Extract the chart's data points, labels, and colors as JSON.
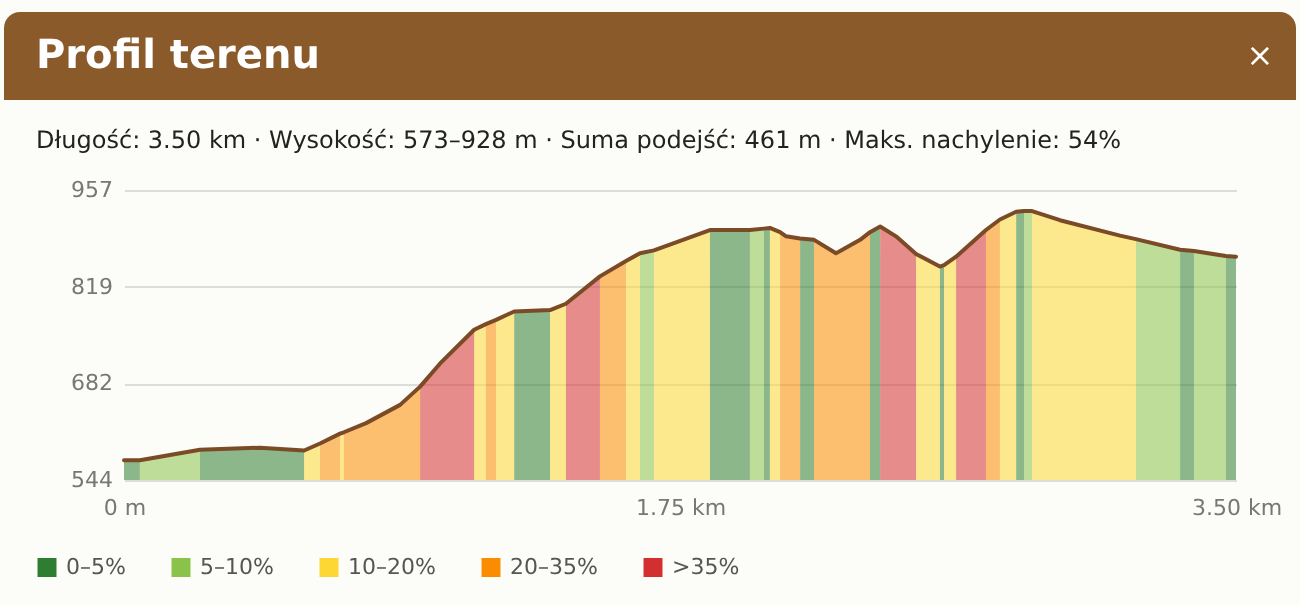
{
  "chart_data": {
    "type": "area",
    "title": "Profil terenu",
    "subtitle": "Długość: 3.50 km · Wysokość: 573–928 m · Suma podejść: 461 m · Maks. nachylenie: 54%",
    "annotations": [
      "×"
    ],
    "xlim": [
      0,
      3.5
    ],
    "xticks": [
      {
        "value": 0,
        "label": "0 m"
      },
      {
        "value": 1.75,
        "label": "1.75 km"
      },
      {
        "value": 3.5,
        "label": "3.50 km"
      }
    ],
    "ylim": [
      544,
      957
    ],
    "yticks": [
      544,
      682,
      819,
      957
    ],
    "grid": "y",
    "legend": "bottom left",
    "series": [
      {
        "name": "0–5%",
        "color": "#2e7d32",
        "x": [
          0,
          0.05,
          null,
          0.239,
          0.428,
          0.567,
          null,
          1.228,
          1.341,
          null,
          1.844,
          1.97,
          null,
          2.014,
          2.033,
          null,
          2.128,
          2.172,
          null,
          2.348,
          2.38,
          null,
          2.568,
          2.581,
          null,
          2.808,
          2.833,
          null,
          3.324,
          3.368,
          null,
          3.468,
          3.5
        ],
        "values": [
          572,
          572,
          null,
          587,
          590,
          586,
          null,
          784,
          786,
          null,
          900,
          900,
          null,
          902,
          903,
          null,
          888,
          886,
          null,
          897,
          905,
          null,
          848,
          850,
          null,
          926,
          927,
          null,
          872,
          870,
          null,
          863,
          862
        ]
      },
      {
        "name": "5–10%",
        "color": "#8bc34a",
        "x": [
          0.05,
          0.239,
          null,
          1.624,
          1.668,
          null,
          1.97,
          2.014,
          null,
          2.833,
          2.858,
          null,
          3.185,
          3.324,
          null,
          3.368,
          3.468
        ],
        "values": [
          572,
          587,
          null,
          867,
          871,
          null,
          900,
          902,
          null,
          927,
          927,
          null,
          887,
          872,
          null,
          870,
          863
        ]
      },
      {
        "name": "10–20%",
        "color": "#fdd835",
        "x": [
          0.567,
          0.617,
          null,
          0.68,
          0.692,
          null,
          1.102,
          1.139,
          null,
          1.171,
          1.228,
          null,
          1.341,
          1.391,
          null,
          1.58,
          1.624,
          null,
          1.668,
          1.844,
          null,
          2.033,
          2.065,
          null,
          2.493,
          2.568,
          null,
          2.581,
          2.619,
          null,
          2.757,
          2.808,
          null,
          2.858,
          2.946,
          3.135,
          3.185
        ],
        "values": [
          586,
          596,
          null,
          610,
          612,
          null,
          758,
          766,
          null,
          772,
          784,
          null,
          786,
          795,
          null,
          856,
          867,
          null,
          871,
          900,
          null,
          903,
          897,
          null,
          866,
          848,
          null,
          850,
          862,
          null,
          915,
          926,
          null,
          927,
          914,
          892,
          887
        ]
      },
      {
        "name": "20–35%",
        "color": "#fb8c00",
        "x": [
          0.617,
          0.68,
          null,
          0.692,
          0.762,
          0.869,
          0.932,
          null,
          1.139,
          1.171,
          null,
          1.498,
          1.58,
          null,
          2.065,
          2.084,
          2.128,
          null,
          2.172,
          2.241,
          2.254,
          2.317,
          2.348,
          null,
          2.713,
          2.757
        ],
        "values": [
          596,
          610,
          null,
          612,
          625,
          651,
          677,
          null,
          766,
          772,
          null,
          834,
          856,
          null,
          897,
          891,
          888,
          null,
          886,
          867,
          870,
          886,
          897,
          null,
          900,
          915
        ]
      },
      {
        "name": ">35%",
        "color": "#d32f2f",
        "x": [
          0.932,
          0.995,
          1.102,
          null,
          1.391,
          1.498,
          null,
          2.38,
          2.43,
          2.493,
          null,
          2.619,
          2.713
        ],
        "values": [
          677,
          710,
          758,
          null,
          795,
          834,
          null,
          905,
          891,
          866,
          null,
          862,
          900
        ]
      },
      {
        "type": "line",
        "color": "#7b4a26",
        "x": [
          0,
          0.05,
          0.239,
          0.428,
          0.567,
          0.617,
          0.68,
          0.692,
          0.762,
          0.869,
          0.932,
          0.995,
          1.102,
          1.139,
          1.171,
          1.228,
          1.341,
          1.391,
          1.498,
          1.58,
          1.624,
          1.668,
          1.844,
          1.97,
          2.014,
          2.033,
          2.065,
          2.084,
          2.128,
          2.172,
          2.241,
          2.254,
          2.317,
          2.348,
          2.38,
          2.43,
          2.493,
          2.568,
          2.581,
          2.619,
          2.713,
          2.757,
          2.808,
          2.833,
          2.858,
          2.946,
          3.135,
          3.185,
          3.324,
          3.368,
          3.468,
          3.5
        ],
        "values": [
          572,
          572,
          587,
          590,
          586,
          596,
          610,
          612,
          625,
          651,
          677,
          710,
          758,
          766,
          772,
          784,
          786,
          795,
          834,
          856,
          867,
          871,
          900,
          900,
          902,
          903,
          897,
          891,
          888,
          886,
          867,
          870,
          886,
          897,
          905,
          891,
          866,
          848,
          850,
          862,
          900,
          915,
          926,
          927,
          927,
          914,
          892,
          887,
          872,
          870,
          863,
          862
        ]
      }
    ]
  }
}
